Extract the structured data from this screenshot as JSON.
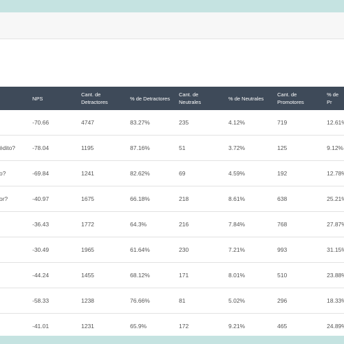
{
  "help_icon_glyph": "?",
  "table": {
    "columns": [
      "NPS",
      "Cant. de Detractores",
      "% de Detractores",
      "Cant. de Neutrales",
      "% de Neutrales",
      "Cant. de Promotores",
      "% de Pr"
    ],
    "rows": [
      {
        "label": "",
        "cells": [
          "-70.66",
          "4747",
          "83.27%",
          "235",
          "4.12%",
          "719",
          "12.61%"
        ]
      },
      {
        "label": "édito?",
        "cells": [
          "-78.04",
          "1195",
          "87.16%",
          "51",
          "3.72%",
          "125",
          "9.12%"
        ]
      },
      {
        "label": "o?",
        "cells": [
          "-69.84",
          "1241",
          "82.62%",
          "69",
          "4.59%",
          "192",
          "12.78%"
        ]
      },
      {
        "label": "or?",
        "cells": [
          "-40.97",
          "1675",
          "66.18%",
          "218",
          "8.61%",
          "638",
          "25.21%"
        ]
      },
      {
        "label": "",
        "cells": [
          "-36.43",
          "1772",
          "64.3%",
          "216",
          "7.84%",
          "768",
          "27.87%"
        ]
      },
      {
        "label": "",
        "cells": [
          "-30.49",
          "1965",
          "61.64%",
          "230",
          "7.21%",
          "993",
          "31.15%"
        ]
      },
      {
        "label": "",
        "cells": [
          "-44.24",
          "1455",
          "68.12%",
          "171",
          "8.01%",
          "510",
          "23.88%"
        ]
      },
      {
        "label": "",
        "cells": [
          "-58.33",
          "1238",
          "76.66%",
          "81",
          "5.02%",
          "296",
          "18.33%"
        ]
      },
      {
        "label": "",
        "cells": [
          "-41.01",
          "1231",
          "65.9%",
          "172",
          "9.21%",
          "465",
          "24.89%"
        ]
      }
    ]
  }
}
